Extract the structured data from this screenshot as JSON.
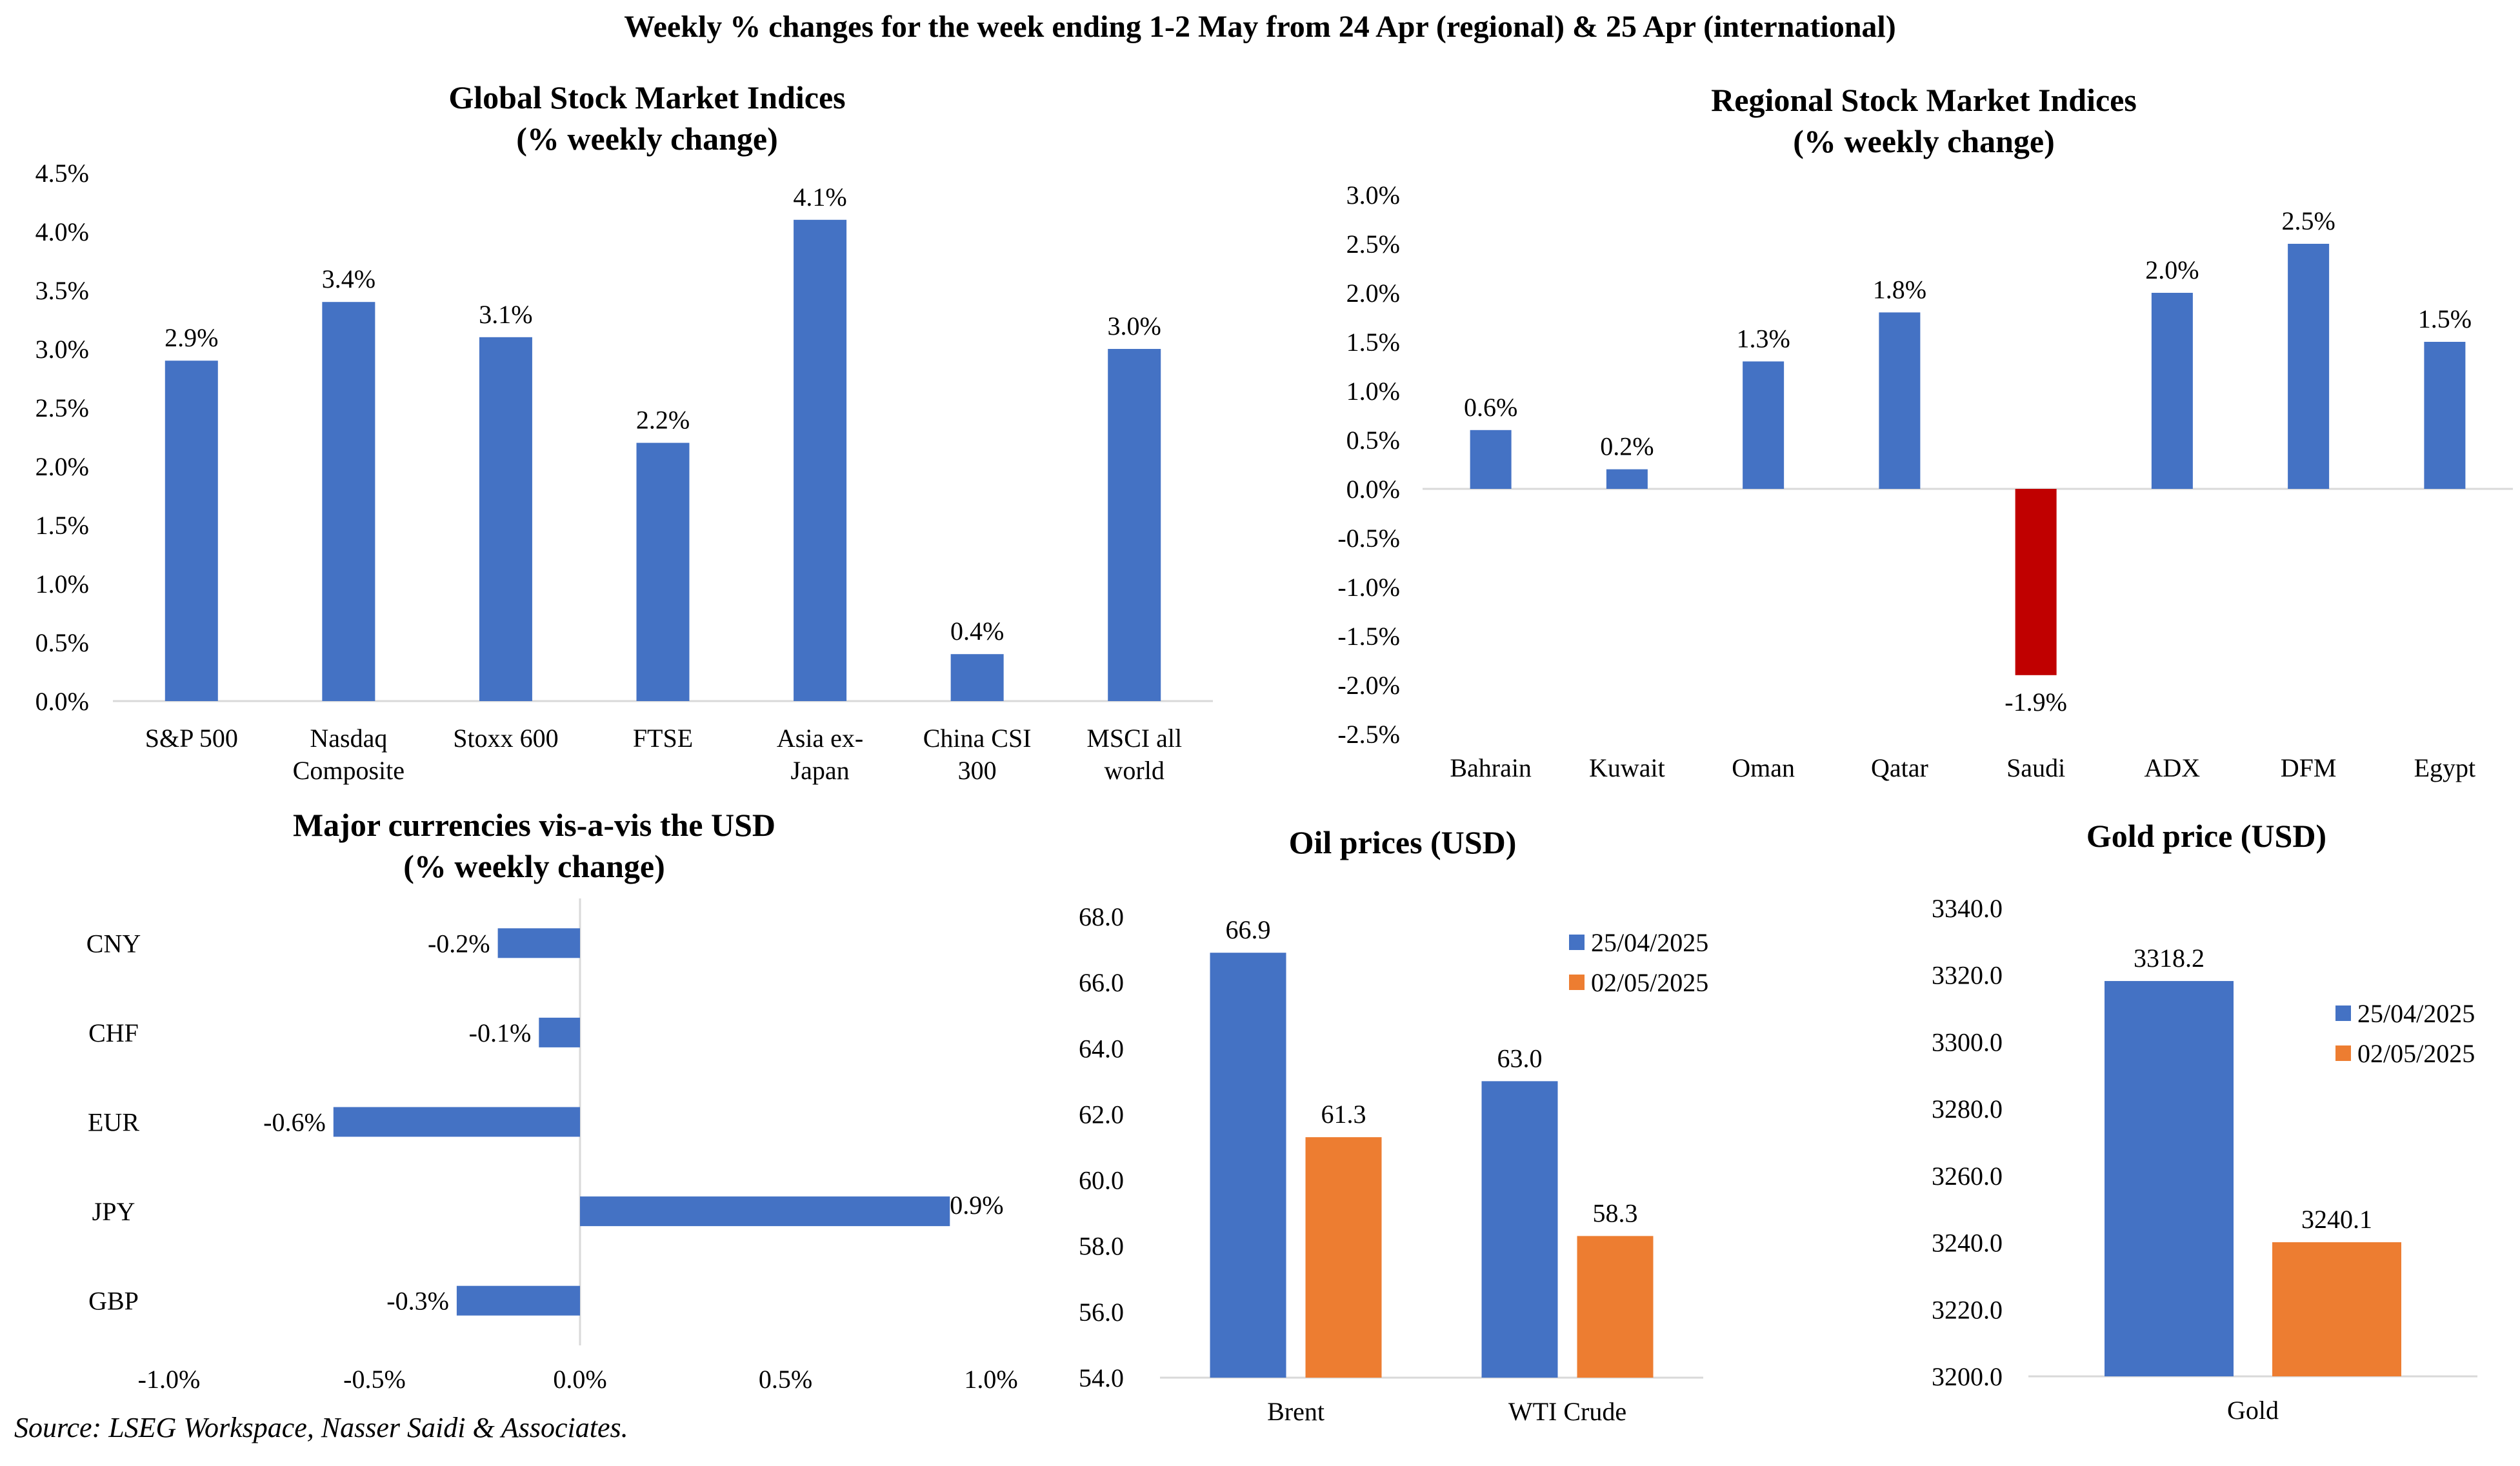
{
  "page_title": "Weekly % changes for the week ending 1-2 May from 24 Apr (regional) & 25 Apr (international)",
  "source": "Source: LSEG Workspace, Nasser Saidi & Associates.",
  "colors": {
    "blue": "#4472C4",
    "orange": "#ED7D31",
    "red": "#C00000",
    "axis": "#D9D9D9"
  },
  "chart_data": [
    {
      "id": "global",
      "type": "bar",
      "title": [
        "Global Stock Market Indices",
        "(% weekly change)"
      ],
      "categories": [
        [
          "S&P 500"
        ],
        [
          "Nasdaq",
          "Composite"
        ],
        [
          "Stoxx 600"
        ],
        [
          "FTSE"
        ],
        [
          "Asia ex-",
          "Japan"
        ],
        [
          "China CSI",
          "300"
        ],
        [
          "MSCI all",
          "world"
        ]
      ],
      "values": [
        2.9,
        3.4,
        3.1,
        2.2,
        4.1,
        0.4,
        3.0
      ],
      "labels": [
        "2.9%",
        "3.4%",
        "3.1%",
        "2.2%",
        "4.1%",
        "0.4%",
        "3.0%"
      ],
      "ylim": [
        0,
        4.5
      ],
      "yticks": [
        "0.0%",
        "0.5%",
        "1.0%",
        "1.5%",
        "2.0%",
        "2.5%",
        "3.0%",
        "3.5%",
        "4.0%",
        "4.5%"
      ]
    },
    {
      "id": "regional",
      "type": "bar",
      "title": [
        "Regional Stock Market Indices",
        "(% weekly change)"
      ],
      "categories": [
        [
          "Bahrain"
        ],
        [
          "Kuwait"
        ],
        [
          "Oman"
        ],
        [
          "Qatar"
        ],
        [
          "Saudi"
        ],
        [
          "ADX"
        ],
        [
          "DFM"
        ],
        [
          "Egypt"
        ]
      ],
      "values": [
        0.6,
        0.2,
        1.3,
        1.8,
        -1.9,
        2.0,
        2.5,
        1.5
      ],
      "labels": [
        "0.6%",
        "0.2%",
        "1.3%",
        "1.8%",
        "-1.9%",
        "2.0%",
        "2.5%",
        "1.5%"
      ],
      "ylim": [
        -2.5,
        3.0
      ],
      "yticks": [
        "-2.5%",
        "-2.0%",
        "-1.5%",
        "-1.0%",
        "-0.5%",
        "0.0%",
        "0.5%",
        "1.0%",
        "1.5%",
        "2.0%",
        "2.5%",
        "3.0%"
      ]
    },
    {
      "id": "currencies",
      "type": "bar",
      "orientation": "horizontal",
      "title": [
        "Major currencies vis-a-vis the USD",
        "(% weekly change)"
      ],
      "categories": [
        "CNY",
        "CHF",
        "EUR",
        "JPY",
        "GBP"
      ],
      "values": [
        -0.2,
        -0.1,
        -0.6,
        0.9,
        -0.3
      ],
      "labels": [
        "-0.2%",
        "-0.1%",
        "-0.6%",
        "0.9%",
        "-0.3%"
      ],
      "xlim": [
        -1.0,
        1.0
      ],
      "xticks": [
        "-1.0%",
        "-0.5%",
        "0.0%",
        "0.5%",
        "1.0%"
      ]
    },
    {
      "id": "oil",
      "type": "bar",
      "title": [
        "Oil prices (USD)"
      ],
      "categories": [
        "Brent",
        "WTI Crude"
      ],
      "series": [
        {
          "name": "25/04/2025",
          "values": [
            66.9,
            63.0
          ],
          "labels": [
            "66.9",
            "63.0"
          ]
        },
        {
          "name": "02/05/2025",
          "values": [
            61.3,
            58.3
          ],
          "labels": [
            "61.3",
            "58.3"
          ]
        }
      ],
      "ylim": [
        54.0,
        68.0
      ],
      "yticks": [
        "54.0",
        "56.0",
        "58.0",
        "60.0",
        "62.0",
        "64.0",
        "66.0",
        "68.0"
      ]
    },
    {
      "id": "gold",
      "type": "bar",
      "title": [
        "Gold price (USD)"
      ],
      "categories": [
        "Gold"
      ],
      "series": [
        {
          "name": "25/04/2025",
          "values": [
            3318.2
          ],
          "labels": [
            "3318.2"
          ]
        },
        {
          "name": "02/05/2025",
          "values": [
            3240.1
          ],
          "labels": [
            "3240.1"
          ]
        }
      ],
      "ylim": [
        3200.0,
        3340.0
      ],
      "yticks": [
        "3200.0",
        "3220.0",
        "3240.0",
        "3260.0",
        "3280.0",
        "3300.0",
        "3320.0",
        "3340.0"
      ]
    }
  ]
}
